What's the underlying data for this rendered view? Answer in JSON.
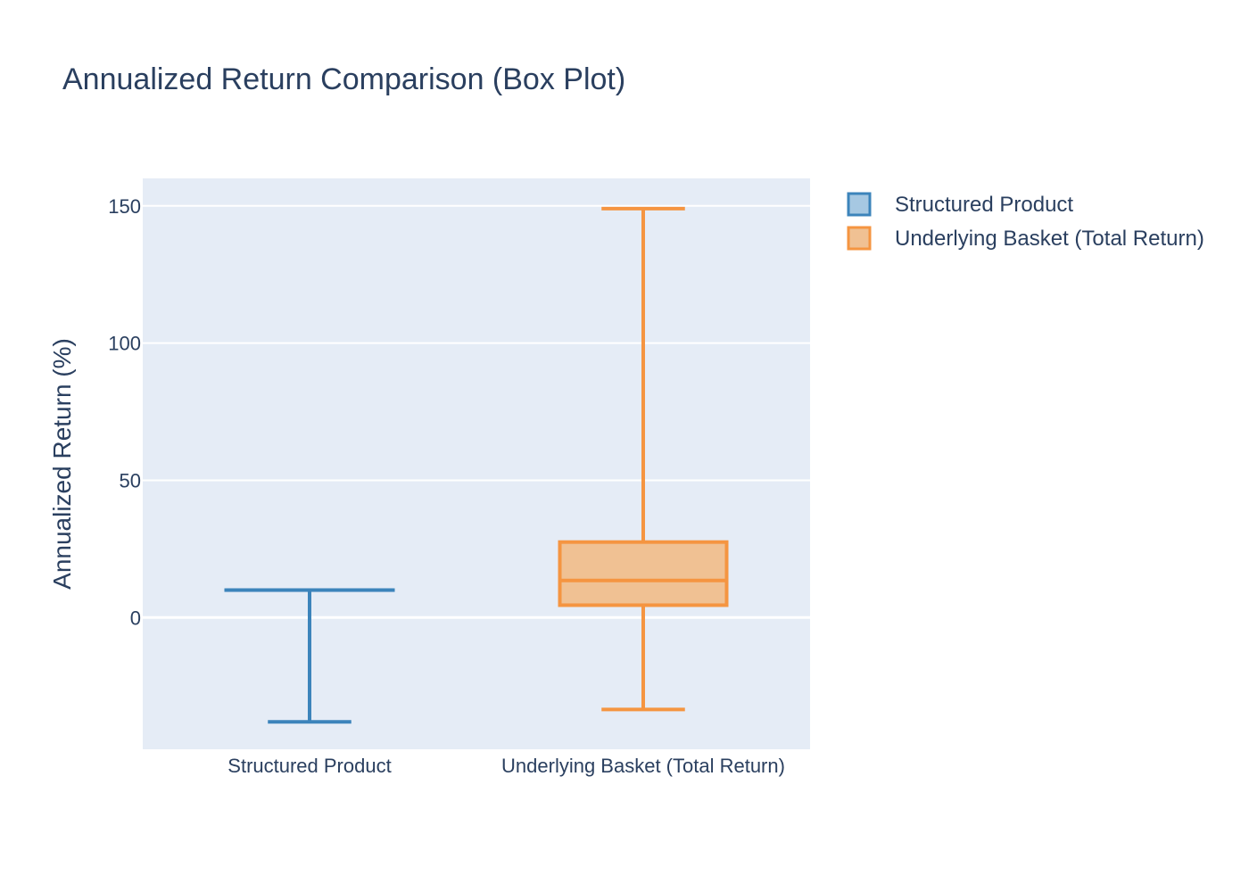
{
  "chart_data": {
    "type": "box",
    "title": "Annualized Return Comparison (Box Plot)",
    "xlabel": "",
    "ylabel": "Annualized Return (%)",
    "ylim": [
      -48,
      160
    ],
    "yticks": [
      0,
      50,
      100,
      150
    ],
    "grid": true,
    "legend_position": "top-right",
    "categories": [
      "Structured Product",
      "Underlying Basket (Total Return)"
    ],
    "series": [
      {
        "name": "Structured Product",
        "color": "#3c84bb",
        "fill": "#a6c8e2",
        "min": -38,
        "q1": 10,
        "median": 10,
        "q3": 10,
        "max": 10
      },
      {
        "name": "Underlying Basket (Total Return)",
        "color": "#f59541",
        "fill": "#f0c193",
        "min": -33.5,
        "q1": 4.5,
        "median": 13.5,
        "q3": 27.5,
        "max": 149
      }
    ]
  }
}
